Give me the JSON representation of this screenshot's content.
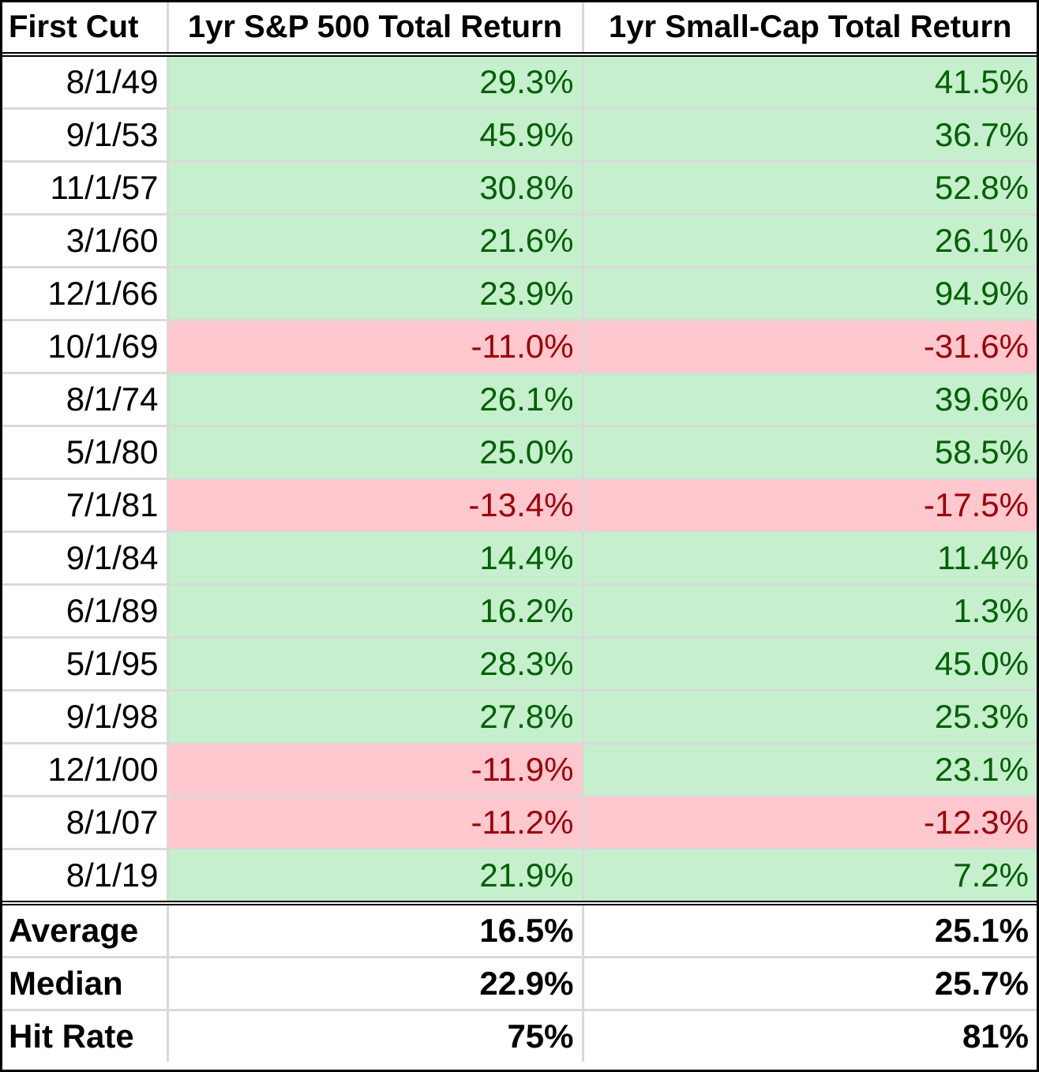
{
  "table": {
    "headers": [
      "First Cut",
      "1yr S&P 500 Total Return",
      "1yr Small-Cap Total Return"
    ],
    "rows": [
      {
        "date": "8/1/49",
        "sp": "29.3%",
        "sc": "41.5%",
        "sp_status": "pos",
        "sc_status": "pos"
      },
      {
        "date": "9/1/53",
        "sp": "45.9%",
        "sc": "36.7%",
        "sp_status": "pos",
        "sc_status": "pos"
      },
      {
        "date": "11/1/57",
        "sp": "30.8%",
        "sc": "52.8%",
        "sp_status": "pos",
        "sc_status": "pos"
      },
      {
        "date": "3/1/60",
        "sp": "21.6%",
        "sc": "26.1%",
        "sp_status": "pos",
        "sc_status": "pos"
      },
      {
        "date": "12/1/66",
        "sp": "23.9%",
        "sc": "94.9%",
        "sp_status": "pos",
        "sc_status": "pos"
      },
      {
        "date": "10/1/69",
        "sp": "-11.0%",
        "sc": "-31.6%",
        "sp_status": "neg",
        "sc_status": "neg"
      },
      {
        "date": "8/1/74",
        "sp": "26.1%",
        "sc": "39.6%",
        "sp_status": "pos",
        "sc_status": "pos"
      },
      {
        "date": "5/1/80",
        "sp": "25.0%",
        "sc": "58.5%",
        "sp_status": "pos",
        "sc_status": "pos"
      },
      {
        "date": "7/1/81",
        "sp": "-13.4%",
        "sc": "-17.5%",
        "sp_status": "neg",
        "sc_status": "neg"
      },
      {
        "date": "9/1/84",
        "sp": "14.4%",
        "sc": "11.4%",
        "sp_status": "pos",
        "sc_status": "pos"
      },
      {
        "date": "6/1/89",
        "sp": "16.2%",
        "sc": "1.3%",
        "sp_status": "pos",
        "sc_status": "pos"
      },
      {
        "date": "5/1/95",
        "sp": "28.3%",
        "sc": "45.0%",
        "sp_status": "pos",
        "sc_status": "pos"
      },
      {
        "date": "9/1/98",
        "sp": "27.8%",
        "sc": "25.3%",
        "sp_status": "pos",
        "sc_status": "pos"
      },
      {
        "date": "12/1/00",
        "sp": "-11.9%",
        "sc": "23.1%",
        "sp_status": "neg",
        "sc_status": "pos"
      },
      {
        "date": "8/1/07",
        "sp": "-11.2%",
        "sc": "-12.3%",
        "sp_status": "neg",
        "sc_status": "neg"
      },
      {
        "date": "8/1/19",
        "sp": "21.9%",
        "sc": "7.2%",
        "sp_status": "pos",
        "sc_status": "pos"
      }
    ],
    "summary": [
      {
        "label": "Average",
        "sp": "16.5%",
        "sc": "25.1%"
      },
      {
        "label": "Median",
        "sp": "22.9%",
        "sc": "25.7%"
      },
      {
        "label": "Hit Rate",
        "sp": "75%",
        "sc": "81%"
      }
    ]
  },
  "colors": {
    "positive_fill": "#c6efce",
    "positive_text": "#006100",
    "negative_fill": "#ffc7ce",
    "negative_text": "#9c0006"
  }
}
